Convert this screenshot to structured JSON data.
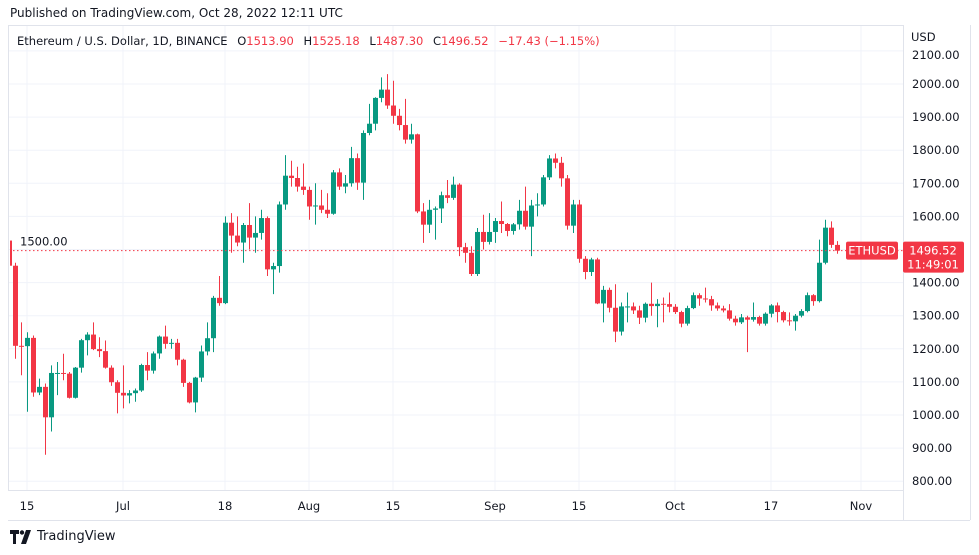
{
  "header": {
    "published": "Published on TradingView.com, Oct 28, 2022 12:11 UTC"
  },
  "legend": {
    "symbol": "Ethereum / U.S. Dollar, 1D, BINANCE",
    "o_label": "O",
    "o": "1513.90",
    "h_label": "H",
    "h": "1525.18",
    "l_label": "L",
    "l": "1487.30",
    "c_label": "C",
    "c": "1496.52",
    "change": "−17.43 (−1.15%)"
  },
  "price_axis": {
    "currency": "USD"
  },
  "last_price": {
    "ticker": "ETHUSD",
    "price": "1496.52",
    "countdown": "11:49:01"
  },
  "footer": {
    "logo_text": "TradingView"
  },
  "colors": {
    "up": "#089981",
    "down": "#f23645",
    "grid": "#f0f3fa",
    "text": "#131722"
  },
  "chart_data": {
    "type": "candlestick",
    "title": "Ethereum / U.S. Dollar, 1D, BINANCE",
    "ylim": [
      760,
      2110
    ],
    "grid": true,
    "y_ticks": [
      "800.00",
      "900.00",
      "1000.00",
      "1100.00",
      "1200.00",
      "1300.00",
      "1400.00",
      "1500.00",
      "1600.00",
      "1700.00",
      "1800.00",
      "1900.00",
      "2000.00",
      "2100.00"
    ],
    "x_ticks": [
      {
        "date": "2022-06-15",
        "label": "15"
      },
      {
        "date": "2022-07-01",
        "label": "Jul"
      },
      {
        "date": "2022-07-18",
        "label": "18"
      },
      {
        "date": "2022-08-01",
        "label": "Aug"
      },
      {
        "date": "2022-08-15",
        "label": "15"
      },
      {
        "date": "2022-09-01",
        "label": "Sep"
      },
      {
        "date": "2022-09-15",
        "label": "15"
      },
      {
        "date": "2022-10-01",
        "label": "Oct"
      },
      {
        "date": "2022-10-17",
        "label": "17"
      },
      {
        "date": "2022-11-01",
        "label": "Nov"
      }
    ],
    "last_price": 1496.52,
    "candles_columns": [
      "date",
      "open",
      "high",
      "low",
      "close"
    ],
    "candles": [
      [
        "2022-06-12",
        1527,
        1545,
        1420,
        1451
      ],
      [
        "2022-06-13",
        1451,
        1460,
        1170,
        1209
      ],
      [
        "2022-06-14",
        1209,
        1280,
        1120,
        1208
      ],
      [
        "2022-06-15",
        1208,
        1250,
        1010,
        1233
      ],
      [
        "2022-06-16",
        1233,
        1240,
        1055,
        1068
      ],
      [
        "2022-06-17",
        1068,
        1110,
        1060,
        1085
      ],
      [
        "2022-06-18",
        1085,
        1095,
        880,
        993
      ],
      [
        "2022-06-19",
        993,
        1150,
        950,
        1127
      ],
      [
        "2022-06-20",
        1127,
        1160,
        1060,
        1127
      ],
      [
        "2022-06-21",
        1127,
        1185,
        1105,
        1125
      ],
      [
        "2022-06-22",
        1125,
        1130,
        1050,
        1052
      ],
      [
        "2022-06-23",
        1052,
        1145,
        1050,
        1143
      ],
      [
        "2022-06-24",
        1143,
        1230,
        1128,
        1226
      ],
      [
        "2022-06-25",
        1226,
        1250,
        1180,
        1243
      ],
      [
        "2022-06-26",
        1243,
        1280,
        1196,
        1199
      ],
      [
        "2022-06-27",
        1199,
        1235,
        1175,
        1193
      ],
      [
        "2022-06-28",
        1193,
        1225,
        1140,
        1143
      ],
      [
        "2022-06-29",
        1143,
        1150,
        1088,
        1099
      ],
      [
        "2022-06-30",
        1099,
        1105,
        1005,
        1067
      ],
      [
        "2022-07-01",
        1067,
        1150,
        1020,
        1059
      ],
      [
        "2022-07-02",
        1059,
        1075,
        1035,
        1066
      ],
      [
        "2022-07-03",
        1066,
        1080,
        1040,
        1074
      ],
      [
        "2022-07-04",
        1074,
        1155,
        1070,
        1151
      ],
      [
        "2022-07-05",
        1151,
        1190,
        1105,
        1134
      ],
      [
        "2022-07-06",
        1134,
        1192,
        1125,
        1186
      ],
      [
        "2022-07-07",
        1186,
        1240,
        1170,
        1237
      ],
      [
        "2022-07-08",
        1237,
        1270,
        1200,
        1215
      ],
      [
        "2022-07-09",
        1215,
        1230,
        1200,
        1218
      ],
      [
        "2022-07-10",
        1218,
        1230,
        1150,
        1167
      ],
      [
        "2022-07-11",
        1167,
        1170,
        1085,
        1097
      ],
      [
        "2022-07-12",
        1097,
        1100,
        1035,
        1038
      ],
      [
        "2022-07-13",
        1038,
        1115,
        1008,
        1113
      ],
      [
        "2022-07-14",
        1113,
        1210,
        1100,
        1192
      ],
      [
        "2022-07-15",
        1192,
        1280,
        1180,
        1232
      ],
      [
        "2022-07-16",
        1232,
        1360,
        1190,
        1354
      ],
      [
        "2022-07-17",
        1354,
        1420,
        1330,
        1338
      ],
      [
        "2022-07-18",
        1338,
        1600,
        1335,
        1581
      ],
      [
        "2022-07-19",
        1581,
        1610,
        1490,
        1542
      ],
      [
        "2022-07-20",
        1542,
        1600,
        1510,
        1521
      ],
      [
        "2022-07-21",
        1521,
        1580,
        1460,
        1574
      ],
      [
        "2022-07-22",
        1574,
        1640,
        1500,
        1536
      ],
      [
        "2022-07-23",
        1536,
        1600,
        1490,
        1550
      ],
      [
        "2022-07-24",
        1550,
        1620,
        1530,
        1595
      ],
      [
        "2022-07-25",
        1595,
        1600,
        1420,
        1440
      ],
      [
        "2022-07-26",
        1440,
        1460,
        1365,
        1450
      ],
      [
        "2022-07-27",
        1450,
        1645,
        1430,
        1636
      ],
      [
        "2022-07-28",
        1636,
        1785,
        1620,
        1723
      ],
      [
        "2022-07-29",
        1723,
        1768,
        1690,
        1716
      ],
      [
        "2022-07-30",
        1716,
        1750,
        1675,
        1690
      ],
      [
        "2022-07-31",
        1690,
        1760,
        1665,
        1680
      ],
      [
        "2022-08-01",
        1680,
        1690,
        1590,
        1630
      ],
      [
        "2022-08-02",
        1630,
        1700,
        1575,
        1633
      ],
      [
        "2022-08-03",
        1633,
        1680,
        1610,
        1620
      ],
      [
        "2022-08-04",
        1620,
        1670,
        1595,
        1608
      ],
      [
        "2022-08-05",
        1608,
        1740,
        1605,
        1733
      ],
      [
        "2022-08-06",
        1733,
        1745,
        1680,
        1690
      ],
      [
        "2022-08-07",
        1690,
        1725,
        1670,
        1700
      ],
      [
        "2022-08-08",
        1700,
        1810,
        1690,
        1776
      ],
      [
        "2022-08-09",
        1776,
        1790,
        1680,
        1702
      ],
      [
        "2022-08-10",
        1702,
        1860,
        1650,
        1852
      ],
      [
        "2022-08-11",
        1852,
        1940,
        1845,
        1880
      ],
      [
        "2022-08-12",
        1880,
        1960,
        1860,
        1958
      ],
      [
        "2022-08-13",
        1958,
        2020,
        1945,
        1983
      ],
      [
        "2022-08-14",
        1983,
        2030,
        1925,
        1935
      ],
      [
        "2022-08-15",
        1935,
        2010,
        1880,
        1904
      ],
      [
        "2022-08-16",
        1904,
        1925,
        1860,
        1876
      ],
      [
        "2022-08-17",
        1876,
        1955,
        1820,
        1832
      ],
      [
        "2022-08-18",
        1832,
        1880,
        1820,
        1848
      ],
      [
        "2022-08-19",
        1848,
        1850,
        1610,
        1615
      ],
      [
        "2022-08-20",
        1615,
        1640,
        1520,
        1575
      ],
      [
        "2022-08-21",
        1575,
        1650,
        1550,
        1620
      ],
      [
        "2022-08-22",
        1620,
        1630,
        1530,
        1624
      ],
      [
        "2022-08-23",
        1624,
        1675,
        1580,
        1664
      ],
      [
        "2022-08-24",
        1664,
        1710,
        1640,
        1656
      ],
      [
        "2022-08-25",
        1656,
        1720,
        1650,
        1696
      ],
      [
        "2022-08-26",
        1696,
        1700,
        1480,
        1507
      ],
      [
        "2022-08-27",
        1507,
        1520,
        1460,
        1490
      ],
      [
        "2022-08-28",
        1490,
        1510,
        1420,
        1426
      ],
      [
        "2022-08-29",
        1426,
        1565,
        1420,
        1553
      ],
      [
        "2022-08-30",
        1553,
        1605,
        1500,
        1523
      ],
      [
        "2022-08-31",
        1523,
        1610,
        1515,
        1553
      ],
      [
        "2022-09-01",
        1553,
        1595,
        1520,
        1586
      ],
      [
        "2022-09-02",
        1586,
        1645,
        1550,
        1577
      ],
      [
        "2022-09-03",
        1577,
        1580,
        1540,
        1556
      ],
      [
        "2022-09-04",
        1556,
        1580,
        1545,
        1576
      ],
      [
        "2022-09-05",
        1576,
        1650,
        1560,
        1617
      ],
      [
        "2022-09-06",
        1617,
        1690,
        1560,
        1569
      ],
      [
        "2022-09-07",
        1569,
        1650,
        1480,
        1633
      ],
      [
        "2022-09-08",
        1633,
        1670,
        1600,
        1636
      ],
      [
        "2022-09-09",
        1636,
        1725,
        1630,
        1718
      ],
      [
        "2022-09-10",
        1718,
        1785,
        1710,
        1775
      ],
      [
        "2022-09-11",
        1775,
        1790,
        1745,
        1762
      ],
      [
        "2022-09-12",
        1762,
        1780,
        1690,
        1715
      ],
      [
        "2022-09-13",
        1715,
        1725,
        1560,
        1572
      ],
      [
        "2022-09-14",
        1572,
        1650,
        1550,
        1636
      ],
      [
        "2022-09-15",
        1636,
        1650,
        1460,
        1472
      ],
      [
        "2022-09-16",
        1472,
        1480,
        1410,
        1432
      ],
      [
        "2022-09-17",
        1432,
        1475,
        1420,
        1470
      ],
      [
        "2022-09-18",
        1470,
        1475,
        1335,
        1337
      ],
      [
        "2022-09-19",
        1337,
        1390,
        1280,
        1378
      ],
      [
        "2022-09-20",
        1378,
        1385,
        1310,
        1324
      ],
      [
        "2022-09-21",
        1324,
        1395,
        1220,
        1252
      ],
      [
        "2022-09-22",
        1252,
        1340,
        1240,
        1328
      ],
      [
        "2022-09-23",
        1328,
        1370,
        1280,
        1328
      ],
      [
        "2022-09-24",
        1328,
        1340,
        1305,
        1316
      ],
      [
        "2022-09-25",
        1316,
        1330,
        1275,
        1294
      ],
      [
        "2022-09-26",
        1294,
        1340,
        1280,
        1336
      ],
      [
        "2022-09-27",
        1336,
        1400,
        1300,
        1329
      ],
      [
        "2022-09-28",
        1329,
        1350,
        1265,
        1336
      ],
      [
        "2022-09-29",
        1336,
        1355,
        1280,
        1335
      ],
      [
        "2022-09-30",
        1335,
        1370,
        1310,
        1327
      ],
      [
        "2022-10-01",
        1327,
        1335,
        1305,
        1311
      ],
      [
        "2022-10-02",
        1311,
        1315,
        1265,
        1276
      ],
      [
        "2022-10-03",
        1276,
        1330,
        1270,
        1323
      ],
      [
        "2022-10-04",
        1323,
        1370,
        1320,
        1362
      ],
      [
        "2022-10-05",
        1362,
        1368,
        1330,
        1352
      ],
      [
        "2022-10-06",
        1352,
        1385,
        1340,
        1350
      ],
      [
        "2022-10-07",
        1350,
        1360,
        1315,
        1331
      ],
      [
        "2022-10-08",
        1331,
        1340,
        1315,
        1322
      ],
      [
        "2022-10-09",
        1322,
        1330,
        1310,
        1316
      ],
      [
        "2022-10-10",
        1316,
        1335,
        1285,
        1291
      ],
      [
        "2022-10-11",
        1291,
        1300,
        1270,
        1280
      ],
      [
        "2022-10-12",
        1280,
        1305,
        1275,
        1295
      ],
      [
        "2022-10-13",
        1295,
        1300,
        1190,
        1288
      ],
      [
        "2022-10-14",
        1288,
        1340,
        1282,
        1296
      ],
      [
        "2022-10-15",
        1296,
        1300,
        1270,
        1276
      ],
      [
        "2022-10-16",
        1276,
        1310,
        1270,
        1306
      ],
      [
        "2022-10-17",
        1306,
        1335,
        1295,
        1331
      ],
      [
        "2022-10-18",
        1331,
        1340,
        1280,
        1311
      ],
      [
        "2022-10-19",
        1311,
        1315,
        1280,
        1286
      ],
      [
        "2022-10-20",
        1286,
        1310,
        1270,
        1283
      ],
      [
        "2022-10-21",
        1283,
        1305,
        1255,
        1300
      ],
      [
        "2022-10-22",
        1300,
        1320,
        1295,
        1314
      ],
      [
        "2022-10-23",
        1314,
        1370,
        1310,
        1362
      ],
      [
        "2022-10-24",
        1362,
        1365,
        1330,
        1344
      ],
      [
        "2022-10-25",
        1344,
        1530,
        1340,
        1460
      ],
      [
        "2022-10-26",
        1460,
        1590,
        1455,
        1566
      ],
      [
        "2022-10-27",
        1566,
        1585,
        1505,
        1514
      ],
      [
        "2022-10-28",
        1513.9,
        1525.18,
        1487.3,
        1496.52
      ]
    ]
  }
}
